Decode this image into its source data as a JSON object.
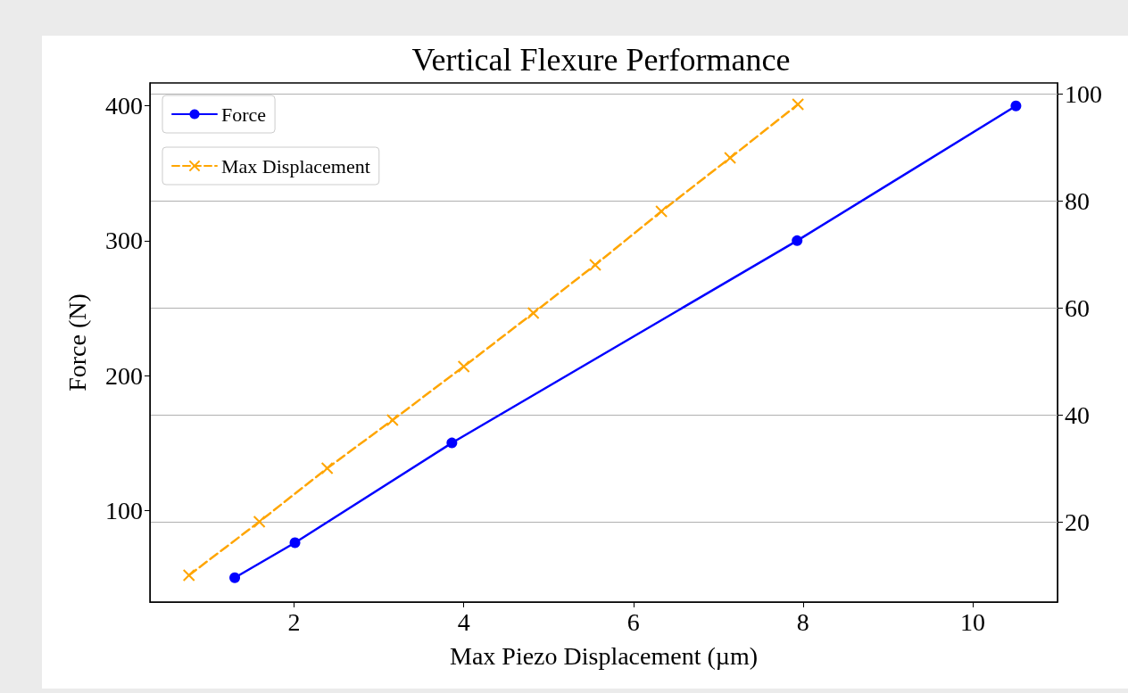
{
  "chart_data": {
    "type": "line",
    "title": "Vertical Flexure Performance",
    "xlabel": "Max Piezo Displacement (µm)",
    "ylabel": "Force (N)",
    "xlim": [
      0.3,
      11.0
    ],
    "xticks": [
      2,
      4,
      6,
      8,
      10
    ],
    "ylim": [
      32,
      417
    ],
    "yticks": [
      100,
      200,
      300,
      400
    ],
    "y2lim": [
      5,
      102
    ],
    "y2ticks": [
      20,
      40,
      60,
      80,
      100
    ],
    "grid": "y",
    "legend": "top left",
    "series": [
      {
        "name": "Force",
        "color": "#0000ff",
        "marker": "circle",
        "line_style": "solid",
        "x": [
          1.3,
          2.01,
          3.86,
          7.93,
          10.51
        ],
        "values": [
          50,
          76,
          150,
          300,
          400
        ]
      },
      {
        "name": "Max Displacement",
        "color": "#ffa500",
        "marker": "cross",
        "line_style": "dashed",
        "axis": "y2",
        "x": [
          0.76,
          1.59,
          2.39,
          3.16,
          4.0,
          4.82,
          5.55,
          6.33,
          7.14,
          7.94
        ],
        "values": [
          10,
          20,
          30,
          39,
          49,
          59,
          68,
          78,
          88,
          98
        ]
      }
    ]
  }
}
